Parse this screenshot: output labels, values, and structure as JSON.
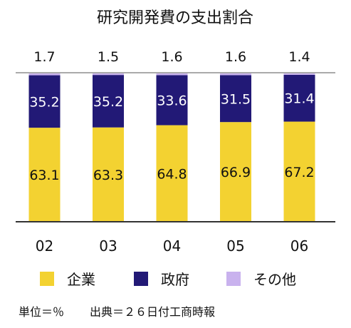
{
  "chart_data": {
    "type": "bar",
    "stacked": true,
    "title": "研究開発費の支出割合",
    "categories": [
      "02",
      "03",
      "04",
      "05",
      "06"
    ],
    "series": [
      {
        "name": "企業",
        "color": "#f3d231",
        "values": [
          63.1,
          63.3,
          64.8,
          66.9,
          67.2
        ],
        "labels": [
          "63.1",
          "63.3",
          "64.8",
          "66.9",
          "67.2"
        ]
      },
      {
        "name": "政府",
        "color": "#221976",
        "values": [
          35.2,
          35.2,
          33.6,
          31.5,
          31.4
        ],
        "labels": [
          "35.2",
          "35.2",
          "33.6",
          "31.5",
          "31.4"
        ]
      },
      {
        "name": "その他",
        "color": "#c9b2ee",
        "values": [
          1.7,
          1.5,
          1.6,
          1.6,
          1.4
        ],
        "labels": [
          "1.7",
          "1.5",
          "1.6",
          "1.6",
          "1.4"
        ]
      }
    ],
    "ylim": [
      0,
      100
    ],
    "grid": false,
    "legend_position": "bottom"
  },
  "footer": {
    "unit": "単位＝％",
    "source": "出典＝２６日付工商時報"
  }
}
